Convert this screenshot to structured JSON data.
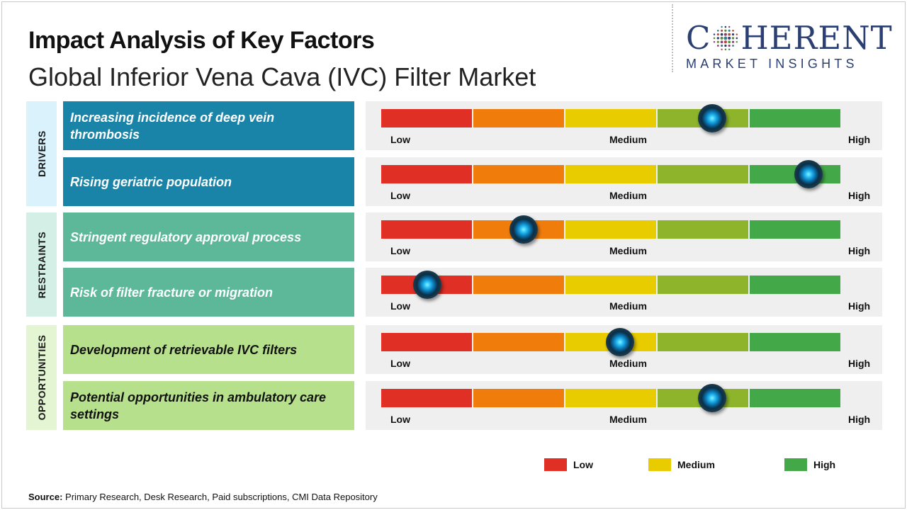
{
  "title": "Impact Analysis of Key Factors",
  "subtitle": "Global Inferior Vena Cava (IVC) Filter Market",
  "logo": {
    "top": "COHERENT",
    "bottom": "MARKET INSIGHTS"
  },
  "colors": {
    "low": "#e02f24",
    "low_mid": "#f07d0b",
    "medium": "#e9cc00",
    "mid_high": "#8db42a",
    "high": "#43a847",
    "drivers": "#1a84a8",
    "restraints": "#5db89a",
    "opportunities": "#b6e08c"
  },
  "chart_data": {
    "type": "table",
    "scale": [
      "Low",
      "Medium",
      "High"
    ],
    "categories": [
      {
        "name": "DRIVERS",
        "factors": [
          {
            "label": "Increasing incidence of deep vein thrombosis",
            "impact": 0.72
          },
          {
            "label": "Rising geriatric population",
            "impact": 0.93
          }
        ]
      },
      {
        "name": "RESTRAINTS",
        "factors": [
          {
            "label": "Stringent regulatory approval process",
            "impact": 0.31
          },
          {
            "label": "Risk of filter fracture or migration",
            "impact": 0.1
          }
        ]
      },
      {
        "name": "OPPORTUNITIES",
        "factors": [
          {
            "label": "Development of retrievable IVC filters",
            "impact": 0.52
          },
          {
            "label": "Potential opportunities in ambulatory care settings",
            "impact": 0.72
          }
        ]
      }
    ],
    "legend": [
      {
        "label": "Low",
        "color": "#e02f24"
      },
      {
        "label": "Medium",
        "color": "#e9cc00"
      },
      {
        "label": "High",
        "color": "#43a847"
      }
    ]
  },
  "source": {
    "label": "Source:",
    "text": " Primary Research, Desk Research, Paid subscriptions, CMI Data Repository"
  }
}
